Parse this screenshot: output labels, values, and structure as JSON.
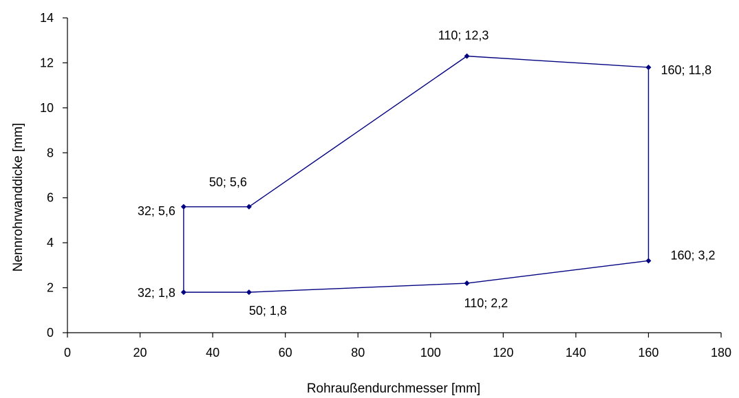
{
  "chart_data": {
    "type": "line",
    "title": "",
    "xlabel": "Rohraußendurchmesser [mm]",
    "ylabel": "Nennrohrwanddicke [mm]",
    "xlim": [
      0,
      180
    ],
    "ylim": [
      0,
      14
    ],
    "x_ticks": [
      "0",
      "20",
      "40",
      "60",
      "80",
      "100",
      "120",
      "140",
      "160",
      "180"
    ],
    "y_ticks": [
      "0",
      "2",
      "4",
      "6",
      "8",
      "10",
      "12",
      "14"
    ],
    "grid": false,
    "legend": "none",
    "line_color": "#000080",
    "series": [
      {
        "closed": true,
        "points": [
          {
            "x": 32,
            "y": 1.8,
            "label": "32; 1,8"
          },
          {
            "x": 50,
            "y": 1.8,
            "label": "50; 1,8"
          },
          {
            "x": 110,
            "y": 2.2,
            "label": "110; 2,2"
          },
          {
            "x": 160,
            "y": 3.2,
            "label": "160; 3,2"
          },
          {
            "x": 160,
            "y": 11.8,
            "label": "160; 11,8"
          },
          {
            "x": 110,
            "y": 12.3,
            "label": "110; 12,3"
          },
          {
            "x": 50,
            "y": 5.6,
            "label": "50; 5,6"
          },
          {
            "x": 32,
            "y": 5.6,
            "label": "32; 5,6"
          }
        ]
      }
    ]
  }
}
